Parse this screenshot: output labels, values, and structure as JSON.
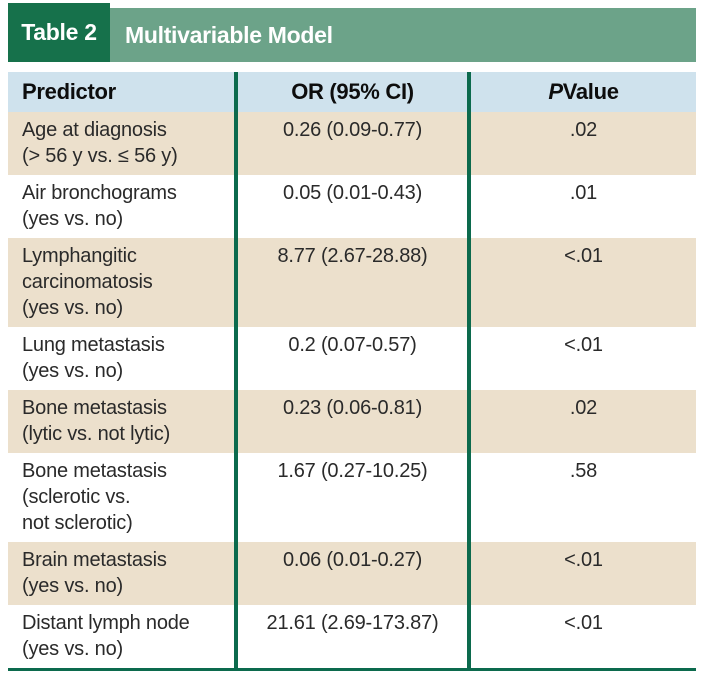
{
  "title_bar": {
    "label": "Table 2",
    "title": "Multivariable Model"
  },
  "table": {
    "columns": [
      {
        "label": "Predictor"
      },
      {
        "label": "OR (95% CI)"
      },
      {
        "label_italic": "P",
        "label_rest": " Value"
      }
    ],
    "rows": [
      {
        "predictor": "Age at diagnosis\n(> 56 y vs. ≤ 56 y)",
        "or_ci": "0.26 (0.09-0.77)",
        "p_value": ".02"
      },
      {
        "predictor": "Air bronchograms\n(yes vs. no)",
        "or_ci": "0.05 (0.01-0.43)",
        "p_value": ".01"
      },
      {
        "predictor": "Lymphangitic\ncarcinomatosis\n(yes vs. no)",
        "or_ci": "8.77 (2.67-28.88)",
        "p_value": "<.01"
      },
      {
        "predictor": "Lung metastasis\n(yes vs. no)",
        "or_ci": "0.2 (0.07-0.57)",
        "p_value": "<.01"
      },
      {
        "predictor": "Bone metastasis\n(lytic vs. not lytic)",
        "or_ci": "0.23 (0.06-0.81)",
        "p_value": ".02"
      },
      {
        "predictor": "Bone metastasis\n(sclerotic vs.\nnot sclerotic)",
        "or_ci": "1.67 (0.27-10.25)",
        "p_value": ".58"
      },
      {
        "predictor": "Brain metastasis\n(yes vs. no)",
        "or_ci": "0.06 (0.01-0.27)",
        "p_value": "<.01"
      },
      {
        "predictor": "Distant lymph node\n(yes vs. no)",
        "or_ci": "21.61 (2.69-173.87)",
        "p_value": "<.01"
      }
    ]
  },
  "colors": {
    "title_label_green": "#16714b",
    "title_bar_sage": "#6ca389",
    "column_header_blue": "#cfe2ed",
    "row_tan": "#ece0cc",
    "row_white": "#ffffff",
    "rule_teal": "#0c6a4d",
    "title_text": "#ffffff",
    "body_text": "#2a2a2a"
  }
}
